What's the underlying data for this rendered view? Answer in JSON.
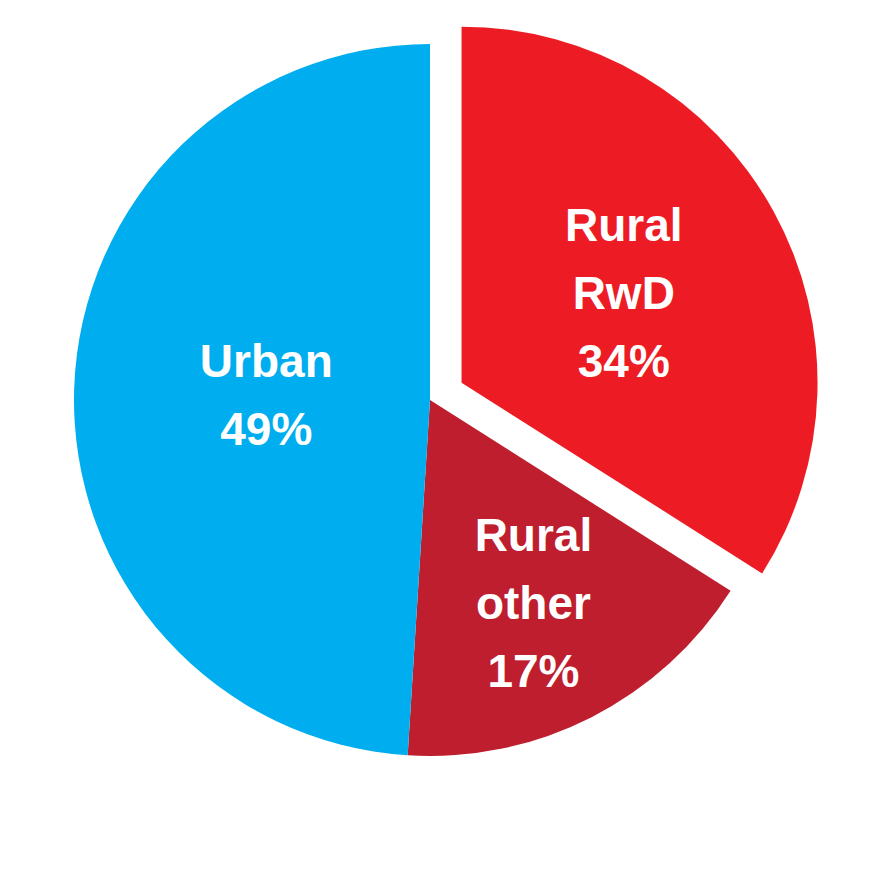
{
  "chart_data": {
    "type": "pie",
    "categories": [
      "Rural RwD",
      "Rural other",
      "Urban"
    ],
    "values": [
      34,
      17,
      49
    ],
    "value_labels": [
      "34%",
      "17%",
      "49%"
    ],
    "colors": [
      "#ed1c24",
      "#be1e2d",
      "#00aeef"
    ],
    "data_labels": true
  }
}
